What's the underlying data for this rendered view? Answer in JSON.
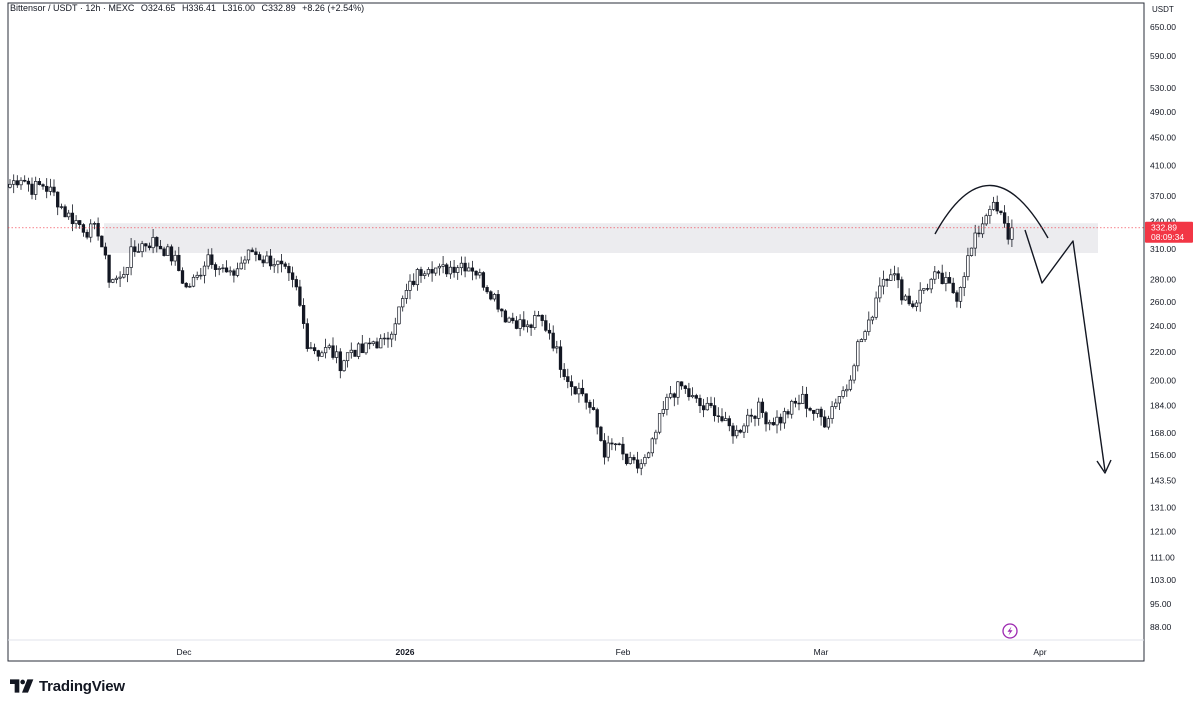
{
  "legend": {
    "symbol": "Bittensor / USDT · 12h · MEXC",
    "open": "O324.65",
    "high": "H336.41",
    "low": "L316.00",
    "close": "C332.89",
    "change": "+8.26 (+2.54%)"
  },
  "brand": {
    "name": "TradingView",
    "icon": "tradingview-logo-icon"
  },
  "last_price": {
    "label": "332.89",
    "countdown": "08:09:34",
    "color": "#f23645"
  },
  "chart_data": {
    "type": "candlestick",
    "axis_unit": "USDT",
    "y_scale": "log",
    "y_ticks": [
      "650.00",
      "590.00",
      "530.00",
      "490.00",
      "450.00",
      "410.00",
      "370.00",
      "340.00",
      "310.00",
      "280.00",
      "260.00",
      "240.00",
      "220.00",
      "200.00",
      "184.00",
      "168.00",
      "156.00",
      "143.50",
      "131.00",
      "121.00",
      "111.00",
      "103.00",
      "95.00",
      "88.00"
    ],
    "x_ticks": [
      "Dec",
      "2026",
      "Feb",
      "Mar",
      "Apr"
    ],
    "ylim": [
      84,
      690
    ],
    "grid": false,
    "resistance_zone": [
      306,
      338
    ],
    "current_price": 332.89,
    "price_path": [
      [
        0,
        385
      ],
      [
        3,
        395
      ],
      [
        6,
        380
      ],
      [
        9,
        384
      ],
      [
        12,
        372
      ],
      [
        15,
        350
      ],
      [
        18,
        340
      ],
      [
        21,
        330
      ],
      [
        24,
        330
      ],
      [
        27,
        282
      ],
      [
        30,
        280
      ],
      [
        33,
        305
      ],
      [
        36,
        315
      ],
      [
        39,
        318
      ],
      [
        42,
        310
      ],
      [
        45,
        298
      ],
      [
        48,
        272
      ],
      [
        51,
        282
      ],
      [
        54,
        305
      ],
      [
        57,
        292
      ],
      [
        60,
        282
      ],
      [
        63,
        296
      ],
      [
        66,
        308
      ],
      [
        69,
        300
      ],
      [
        72,
        298
      ],
      [
        75,
        286
      ],
      [
        78,
        270
      ],
      [
        81,
        228
      ],
      [
        84,
        220
      ],
      [
        87,
        222
      ],
      [
        90,
        212
      ],
      [
        93,
        222
      ],
      [
        96,
        220
      ],
      [
        99,
        228
      ],
      [
        102,
        226
      ],
      [
        105,
        246
      ],
      [
        108,
        268
      ],
      [
        111,
        285
      ],
      [
        114,
        296
      ],
      [
        117,
        288
      ],
      [
        120,
        292
      ],
      [
        123,
        296
      ],
      [
        126,
        292
      ],
      [
        129,
        278
      ],
      [
        132,
        265
      ],
      [
        135,
        248
      ],
      [
        138,
        244
      ],
      [
        141,
        238
      ],
      [
        144,
        246
      ],
      [
        147,
        236
      ],
      [
        150,
        212
      ],
      [
        153,
        198
      ],
      [
        156,
        192
      ],
      [
        159,
        178
      ],
      [
        162,
        158
      ],
      [
        165,
        162
      ],
      [
        168,
        152
      ],
      [
        171,
        150
      ],
      [
        174,
        155
      ],
      [
        177,
        175
      ],
      [
        180,
        192
      ],
      [
        183,
        196
      ],
      [
        186,
        188
      ],
      [
        189,
        182
      ],
      [
        192,
        182
      ],
      [
        195,
        172
      ],
      [
        198,
        168
      ],
      [
        201,
        178
      ],
      [
        204,
        182
      ],
      [
        207,
        175
      ],
      [
        210,
        176
      ],
      [
        213,
        183
      ],
      [
        216,
        188
      ],
      [
        219,
        180
      ],
      [
        222,
        175
      ],
      [
        225,
        188
      ],
      [
        228,
        196
      ],
      [
        231,
        225
      ],
      [
        234,
        240
      ],
      [
        237,
        278
      ],
      [
        240,
        290
      ],
      [
        243,
        268
      ],
      [
        246,
        258
      ],
      [
        249,
        272
      ],
      [
        252,
        282
      ],
      [
        255,
        276
      ],
      [
        258,
        266
      ],
      [
        261,
        300
      ],
      [
        264,
        330
      ],
      [
        267,
        360
      ],
      [
        270,
        345
      ],
      [
        272,
        324
      ],
      [
        273,
        332.89
      ]
    ],
    "annotations": [
      {
        "type": "arc",
        "description": "rounded top drawing"
      },
      {
        "type": "arrow",
        "description": "projected decline path"
      }
    ]
  },
  "icons": {
    "badge": "lightning-badge-icon"
  }
}
